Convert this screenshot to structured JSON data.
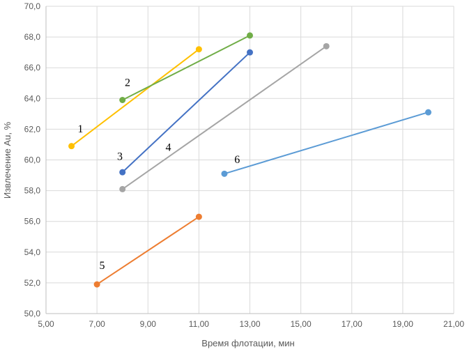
{
  "chart_data": {
    "type": "line",
    "title": "",
    "xlabel": "Время флотации, мин",
    "ylabel": "Извлечение Au, %",
    "xlim": [
      5,
      21
    ],
    "ylim": [
      50,
      70
    ],
    "x_ticks": [
      "5,00",
      "7,00",
      "9,00",
      "11,00",
      "13,00",
      "15,00",
      "17,00",
      "19,00",
      "21,00"
    ],
    "y_ticks": [
      "50,0",
      "52,0",
      "54,0",
      "56,0",
      "58,0",
      "60,0",
      "62,0",
      "64,0",
      "66,0",
      "68,0",
      "70,0"
    ],
    "grid": true,
    "legend": "none",
    "series": [
      {
        "name": "1",
        "color": "#FFC000",
        "points": [
          [
            6,
            60.9
          ],
          [
            11,
            67.2
          ]
        ]
      },
      {
        "name": "2",
        "color": "#70AD47",
        "points": [
          [
            8,
            63.9
          ],
          [
            13,
            68.1
          ]
        ]
      },
      {
        "name": "3",
        "color": "#4472C4",
        "points": [
          [
            8,
            59.2
          ],
          [
            13,
            67.0
          ]
        ]
      },
      {
        "name": "4",
        "color": "#A5A5A5",
        "points": [
          [
            8,
            58.1
          ],
          [
            16,
            67.4
          ]
        ]
      },
      {
        "name": "5",
        "color": "#ED7D31",
        "points": [
          [
            7,
            51.9
          ],
          [
            11,
            56.3
          ]
        ]
      },
      {
        "name": "6",
        "color": "#5B9BD5",
        "points": [
          [
            12,
            59.1
          ],
          [
            20,
            63.1
          ]
        ]
      }
    ],
    "series_labels": [
      {
        "text": "1",
        "x": 6.35,
        "y": 61.8
      },
      {
        "text": "2",
        "x": 8.2,
        "y": 64.8
      },
      {
        "text": "3",
        "x": 7.9,
        "y": 60.0
      },
      {
        "text": "4",
        "x": 9.8,
        "y": 60.6
      },
      {
        "text": "5",
        "x": 7.2,
        "y": 52.9
      },
      {
        "text": "6",
        "x": 12.5,
        "y": 59.8
      }
    ]
  }
}
